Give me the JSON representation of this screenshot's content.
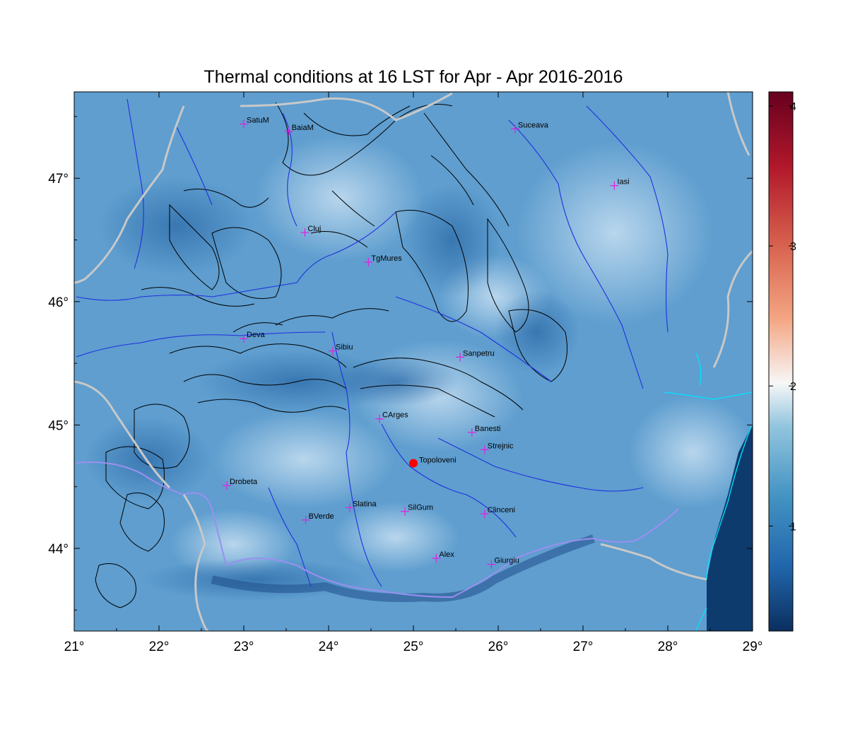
{
  "title": "Thermal conditions at 16 LST for Apr - Apr  2016-2016",
  "map": {
    "lon_range": [
      21,
      29
    ],
    "lat_range": [
      43.33,
      47.7
    ],
    "lon_ticks": [
      {
        "value": 21,
        "label": "21°"
      },
      {
        "value": 22,
        "label": "22°"
      },
      {
        "value": 23,
        "label": "23°"
      },
      {
        "value": 24,
        "label": "24°"
      },
      {
        "value": 25,
        "label": "25°"
      },
      {
        "value": 26,
        "label": "26°"
      },
      {
        "value": 27,
        "label": "27°"
      },
      {
        "value": 28,
        "label": "28°"
      },
      {
        "value": 29,
        "label": "29°"
      }
    ],
    "lat_ticks": [
      {
        "value": 44,
        "label": "44°"
      },
      {
        "value": 45,
        "label": "45°"
      },
      {
        "value": 46,
        "label": "46°"
      },
      {
        "value": 47,
        "label": "47°"
      }
    ],
    "cities": [
      {
        "name": "SatuM",
        "lon": 23.0,
        "lat": 47.44
      },
      {
        "name": "BaiaM",
        "lon": 23.53,
        "lat": 47.38
      },
      {
        "name": "Suceava",
        "lon": 26.2,
        "lat": 47.4
      },
      {
        "name": "Iasi",
        "lon": 27.37,
        "lat": 46.94
      },
      {
        "name": "Cluj",
        "lon": 23.72,
        "lat": 46.56
      },
      {
        "name": "TgMures",
        "lon": 24.47,
        "lat": 46.32
      },
      {
        "name": "Deva",
        "lon": 23.0,
        "lat": 45.7
      },
      {
        "name": "Sibiu",
        "lon": 24.05,
        "lat": 45.6
      },
      {
        "name": "Sanpetru",
        "lon": 25.55,
        "lat": 45.55
      },
      {
        "name": "CArges",
        "lon": 24.6,
        "lat": 45.05
      },
      {
        "name": "Banesti",
        "lon": 25.69,
        "lat": 44.94
      },
      {
        "name": "Strejnic",
        "lon": 25.84,
        "lat": 44.8
      },
      {
        "name": "Drobeta",
        "lon": 22.8,
        "lat": 44.51
      },
      {
        "name": "Slatina",
        "lon": 24.25,
        "lat": 44.33
      },
      {
        "name": "SilGum",
        "lon": 24.9,
        "lat": 44.3
      },
      {
        "name": "Clinceni",
        "lon": 25.84,
        "lat": 44.28
      },
      {
        "name": "BVerde",
        "lon": 23.73,
        "lat": 44.23
      },
      {
        "name": "Alex",
        "lon": 25.27,
        "lat": 43.92
      },
      {
        "name": "Giurgiu",
        "lon": 25.92,
        "lat": 43.87
      }
    ],
    "highlight_station": {
      "name": "Topoloveni",
      "lon": 25.0,
      "lat": 44.69,
      "color": "#ff0000"
    },
    "colors": {
      "border": "#c0c0c0",
      "rivers": "#2030e0",
      "contours": "#000000",
      "coast": "#00e5ff",
      "marker": "#e020e0",
      "sea": "#0d3b6e"
    }
  },
  "colorbar": {
    "range": [
      0.25,
      4.1
    ],
    "ticks": [
      {
        "value": 1,
        "label": "1"
      },
      {
        "value": 2,
        "label": "2"
      },
      {
        "value": 3,
        "label": "3"
      },
      {
        "value": 4,
        "label": "4"
      }
    ],
    "stops": [
      "#0b2f5e",
      "#2166ac",
      "#4393c3",
      "#92c5de",
      "#f7f7f7",
      "#f4a582",
      "#d6604d",
      "#b2182b",
      "#67001f"
    ]
  }
}
